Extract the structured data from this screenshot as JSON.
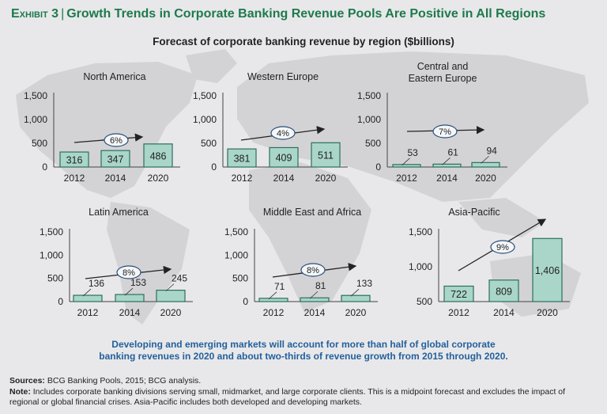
{
  "header": {
    "exhibit_label": "Exhibit 3",
    "title": "Growth Trends in Corporate Banking Revenue Pools Are Positive in All Regions",
    "subtitle": "Forecast of corporate banking revenue by region ($billions)"
  },
  "colors": {
    "title": "#1d7a4c",
    "bar_fill": "#a9d6c8",
    "bar_stroke": "#2d6e5f",
    "takeaway": "#23609c"
  },
  "chart_data": [
    {
      "type": "bar",
      "title": "North America",
      "categories": [
        "2012",
        "2014",
        "2020"
      ],
      "values": [
        316,
        347,
        486
      ],
      "value_labels": [
        "316",
        "347",
        "486"
      ],
      "growth_label": "6%",
      "ylim": [
        0,
        1500
      ],
      "yticks": [
        "0",
        "500",
        "1,000",
        "1,500"
      ],
      "ytick_values": [
        0,
        500,
        1000,
        1500
      ]
    },
    {
      "type": "bar",
      "title": "Western Europe",
      "categories": [
        "2012",
        "2014",
        "2020"
      ],
      "values": [
        381,
        409,
        511
      ],
      "value_labels": [
        "381",
        "409",
        "511"
      ],
      "growth_label": "4%",
      "ylim": [
        0,
        1500
      ],
      "yticks": [
        "0",
        "500",
        "1,000",
        "1,500"
      ],
      "ytick_values": [
        0,
        500,
        1000,
        1500
      ]
    },
    {
      "type": "bar",
      "title": "Central and Eastern Europe",
      "title_lines": [
        "Central and",
        "Eastern Europe"
      ],
      "categories": [
        "2012",
        "2014",
        "2020"
      ],
      "values": [
        53,
        61,
        94
      ],
      "value_labels": [
        "53",
        "61",
        "94"
      ],
      "growth_label": "7%",
      "ylim": [
        0,
        1500
      ],
      "yticks": [
        "0",
        "500",
        "1,000",
        "1,500"
      ],
      "ytick_values": [
        0,
        500,
        1000,
        1500
      ]
    },
    {
      "type": "bar",
      "title": "Latin America",
      "categories": [
        "2012",
        "2014",
        "2020"
      ],
      "values": [
        136,
        153,
        245
      ],
      "value_labels": [
        "136",
        "153",
        "245"
      ],
      "growth_label": "8%",
      "ylim": [
        0,
        1500
      ],
      "yticks": [
        "0",
        "500",
        "1,000",
        "1,500"
      ],
      "ytick_values": [
        0,
        500,
        1000,
        1500
      ]
    },
    {
      "type": "bar",
      "title": "Middle East and Africa",
      "categories": [
        "2012",
        "2014",
        "2020"
      ],
      "values": [
        71,
        81,
        133
      ],
      "value_labels": [
        "71",
        "81",
        "133"
      ],
      "growth_label": "8%",
      "ylim": [
        0,
        1500
      ],
      "yticks": [
        "0",
        "500",
        "1,000",
        "1,500"
      ],
      "ytick_values": [
        0,
        500,
        1000,
        1500
      ]
    },
    {
      "type": "bar",
      "title": "Asia-Pacific",
      "categories": [
        "2012",
        "2014",
        "2020"
      ],
      "values": [
        722,
        809,
        1406
      ],
      "value_labels": [
        "722",
        "809",
        "1,406"
      ],
      "growth_label": "9%",
      "ylim": [
        500,
        1500
      ],
      "yticks": [
        "500",
        "1,000",
        "1,500"
      ],
      "ytick_values": [
        500,
        1000,
        1500
      ]
    }
  ],
  "takeaway": {
    "line1": "Developing and emerging markets will account for more than half of global corporate",
    "line2": "banking revenues in 2020 and about two-thirds of revenue growth from 2015 through 2020."
  },
  "footer": {
    "sources_label": "Sources:",
    "sources_text": "BCG Banking Pools, 2015; BCG analysis.",
    "note_label": "Note:",
    "note_text": "Includes corporate banking divisions serving small, midmarket, and large corporate clients. This is a midpoint forecast and excludes the impact of regional or global financial crises. Asia-Pacific includes both developed and developing markets."
  }
}
